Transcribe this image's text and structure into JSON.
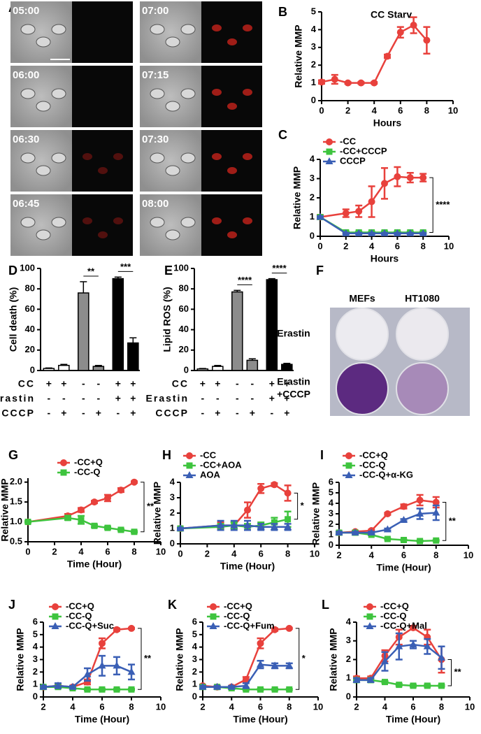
{
  "panel_a": {
    "label": "A",
    "timestamps": [
      "05:00",
      "06:00",
      "06:30",
      "06:45",
      "07:00",
      "07:15",
      "07:30",
      "08:00"
    ]
  },
  "panel_f": {
    "label": "F",
    "columns": [
      "MEFs",
      "HT1080"
    ],
    "rows": [
      {
        "lines": [
          "Erastin"
        ]
      },
      {
        "lines": [
          "Erastin",
          "+CCCP"
        ]
      }
    ]
  },
  "chart_data": [
    {
      "type": "line",
      "label": "B",
      "title": "CC Starv",
      "ylabel": "Relative MMP",
      "xlabel": "Hours",
      "x": [
        0,
        1,
        2,
        3,
        4,
        5,
        6,
        7,
        8
      ],
      "xlim": [
        0,
        10
      ],
      "xticks": [
        0,
        2,
        4,
        6,
        8,
        10
      ],
      "ylim": [
        0,
        5
      ],
      "yticks": [
        0,
        1,
        2,
        3,
        4,
        5
      ],
      "series": [
        {
          "color": "#e8413c",
          "marker": "circle",
          "values": [
            1.05,
            1.2,
            1.0,
            1.0,
            1.0,
            2.5,
            3.85,
            4.25,
            3.4
          ],
          "errors": [
            0.1,
            0.25,
            0.05,
            0.05,
            0.05,
            0.1,
            0.3,
            0.45,
            0.75
          ]
        }
      ]
    },
    {
      "type": "line",
      "label": "C",
      "ylabel": "Relative MMP",
      "xlabel": "Hours",
      "annotation": "****",
      "x": [
        0,
        2,
        3,
        4,
        5,
        6,
        7,
        8
      ],
      "xlim": [
        0,
        10
      ],
      "xticks": [
        0,
        2,
        4,
        6,
        8,
        10
      ],
      "ylim": [
        0,
        4
      ],
      "yticks": [
        0,
        1,
        2,
        3,
        4
      ],
      "series": [
        {
          "name": "-CC",
          "color": "#e8413c",
          "marker": "circle",
          "values": [
            1.0,
            1.2,
            1.3,
            1.8,
            2.75,
            3.1,
            3.05,
            3.05
          ],
          "errors": [
            0.1,
            0.2,
            0.3,
            0.8,
            0.8,
            0.5,
            0.25,
            0.2
          ]
        },
        {
          "name": "-CC+CCCP",
          "color": "#3ec43e",
          "marker": "square",
          "values": [
            1.0,
            0.2,
            0.2,
            0.2,
            0.2,
            0.2,
            0.2,
            0.2
          ],
          "errors": [
            0.05,
            0.05,
            0.05,
            0.05,
            0.05,
            0.05,
            0.05,
            0.05
          ]
        },
        {
          "name": "CCCP",
          "color": "#3a5fb5",
          "marker": "triangle",
          "values": [
            1.0,
            0.15,
            0.15,
            0.15,
            0.15,
            0.15,
            0.15,
            0.15
          ],
          "errors": [
            0.05,
            0.03,
            0.03,
            0.03,
            0.03,
            0.03,
            0.03,
            0.03
          ]
        }
      ]
    },
    {
      "type": "bar",
      "label": "D",
      "ylabel": "Cell death (%)",
      "ylim": [
        0,
        100
      ],
      "yticks": [
        0,
        20,
        40,
        60,
        80,
        100
      ],
      "values": [
        2,
        5,
        76,
        4,
        90,
        27
      ],
      "errors": [
        0.5,
        1,
        11,
        1,
        1.5,
        5
      ],
      "colors": [
        "#ffffff",
        "#ffffff",
        "#8c8c8c",
        "#8c8c8c",
        "#000000",
        "#000000"
      ],
      "annotations": [
        "**",
        "***"
      ],
      "conditions": [
        {
          "name": "CC",
          "values": [
            "+",
            "+",
            "-",
            "-",
            "+",
            "+"
          ]
        },
        {
          "name": "Erastin",
          "values": [
            "-",
            "-",
            "-",
            "-",
            "+",
            "+"
          ]
        },
        {
          "name": "CCCP",
          "values": [
            "-",
            "+",
            "-",
            "+",
            "-",
            "+"
          ]
        }
      ]
    },
    {
      "type": "bar",
      "label": "E",
      "ylabel": "Lipid ROS (%)",
      "ylim": [
        0,
        100
      ],
      "yticks": [
        0,
        20,
        40,
        60,
        80,
        100
      ],
      "values": [
        1.5,
        4,
        77,
        10,
        89,
        6
      ],
      "errors": [
        0.5,
        1,
        1.5,
        1.5,
        1,
        1
      ],
      "colors": [
        "#ffffff",
        "#ffffff",
        "#8c8c8c",
        "#8c8c8c",
        "#000000",
        "#000000"
      ],
      "annotations": [
        "****",
        "****"
      ],
      "conditions": [
        {
          "name": "CC",
          "values": [
            "+",
            "+",
            "-",
            "-",
            "+",
            "+"
          ]
        },
        {
          "name": "Erastin",
          "values": [
            "-",
            "-",
            "-",
            "-",
            "+",
            "+"
          ]
        },
        {
          "name": "CCCP",
          "values": [
            "-",
            "+",
            "-",
            "+",
            "-",
            "+"
          ]
        }
      ]
    },
    {
      "type": "line",
      "label": "G",
      "ylabel": "Relative MMP",
      "xlabel": "Time (Hour)",
      "annotation": "**",
      "x": [
        0,
        3,
        4,
        5,
        6,
        7,
        8
      ],
      "xlim": [
        0,
        10
      ],
      "xticks": [
        0,
        2,
        4,
        6,
        8,
        10
      ],
      "ylim": [
        0.5,
        2.1
      ],
      "yticks": [
        0.5,
        {
          "value": 1,
          "label": "1.0"
        },
        1.5,
        {
          "value": 2,
          "label": "2.0"
        }
      ],
      "series": [
        {
          "name": "-CC+Q",
          "color": "#e8413c",
          "marker": "circle",
          "values": [
            1.0,
            1.15,
            1.3,
            1.5,
            1.6,
            1.8,
            2.0
          ],
          "errors": [
            0.02,
            0.05,
            0.05,
            0.03,
            0.08,
            0.05,
            0.02
          ]
        },
        {
          "name": "-CC-Q",
          "color": "#3ec43e",
          "marker": "square",
          "values": [
            1.0,
            1.1,
            1.05,
            0.9,
            0.85,
            0.8,
            0.75
          ],
          "errors": [
            0.02,
            0.05,
            0.1,
            0.03,
            0.03,
            0.02,
            0.02
          ]
        }
      ]
    },
    {
      "type": "line",
      "label": "H",
      "ylabel": "Relative MMP",
      "xlabel": "Time (Hour)",
      "annotation": "*",
      "x": [
        0,
        3,
        4,
        5,
        6,
        7,
        8
      ],
      "xlim": [
        0,
        10
      ],
      "xticks": [
        0,
        2,
        4,
        6,
        8,
        10
      ],
      "ylim": [
        0,
        4
      ],
      "yticks": [
        0,
        1,
        2,
        3,
        4
      ],
      "series": [
        {
          "name": "-CC",
          "color": "#e8413c",
          "marker": "circle",
          "values": [
            1.0,
            1.2,
            1.2,
            2.2,
            3.6,
            3.85,
            3.3
          ],
          "errors": [
            0.05,
            0.2,
            0.2,
            0.5,
            0.3,
            0.1,
            0.5
          ]
        },
        {
          "name": "-CC+AOA",
          "color": "#3ec43e",
          "marker": "square",
          "values": [
            1.0,
            1.1,
            1.2,
            1.1,
            1.2,
            1.4,
            1.6
          ],
          "errors": [
            0.05,
            0.2,
            0.2,
            0.2,
            0.2,
            0.3,
            0.5
          ]
        },
        {
          "name": "AOA",
          "color": "#3a5fb5",
          "marker": "triangle",
          "values": [
            1.0,
            1.2,
            1.2,
            1.2,
            1.1,
            1.1,
            1.1
          ],
          "errors": [
            0.05,
            0.3,
            0.3,
            0.3,
            0.2,
            0.2,
            0.2
          ]
        }
      ]
    },
    {
      "type": "line",
      "label": "I",
      "ylabel": "Relative MMP",
      "xlabel": "Time (Hour)",
      "annotation": "**",
      "x": [
        2,
        3,
        4,
        5,
        6,
        7,
        8
      ],
      "xlim": [
        2,
        10
      ],
      "xticks": [
        2,
        4,
        6,
        8,
        10
      ],
      "ylim": [
        0,
        6
      ],
      "yticks": [
        0,
        1,
        2,
        3,
        4,
        5,
        6
      ],
      "series": [
        {
          "name": "-CC+Q",
          "color": "#e8413c",
          "marker": "circle",
          "values": [
            1.2,
            1.3,
            1.4,
            3.0,
            3.7,
            4.3,
            4.1
          ],
          "errors": [
            0.1,
            0.1,
            0.1,
            0.1,
            0.2,
            0.5,
            0.5
          ]
        },
        {
          "name": "-CC-Q",
          "color": "#3ec43e",
          "marker": "square",
          "values": [
            1.2,
            1.2,
            1.0,
            0.6,
            0.5,
            0.4,
            0.45
          ],
          "errors": [
            0.05,
            0.05,
            0.05,
            0.05,
            0.05,
            0.05,
            0.05
          ]
        },
        {
          "name": "-CC-Q+α-KG",
          "color": "#3a5fb5",
          "marker": "triangle",
          "values": [
            1.2,
            1.2,
            1.2,
            1.5,
            2.4,
            3.0,
            3.1
          ],
          "errors": [
            0.1,
            0.1,
            0.1,
            0.1,
            0.1,
            0.5,
            0.7
          ]
        }
      ]
    },
    {
      "type": "line",
      "label": "J",
      "ylabel": "Relative MMP",
      "xlabel": "Time (Hour)",
      "annotation": "**",
      "x": [
        2,
        3,
        4,
        5,
        6,
        7,
        8
      ],
      "xlim": [
        2,
        10
      ],
      "xticks": [
        2,
        4,
        6,
        8,
        10
      ],
      "ylim": [
        0,
        6
      ],
      "yticks": [
        0,
        1,
        2,
        3,
        4,
        5,
        6
      ],
      "series": [
        {
          "name": "-CC+Q",
          "color": "#e8413c",
          "marker": "circle",
          "values": [
            0.8,
            0.9,
            0.8,
            1.2,
            4.3,
            5.4,
            5.5
          ],
          "errors": [
            0.05,
            0.1,
            0.1,
            0.2,
            0.4,
            0.1,
            0.05
          ]
        },
        {
          "name": "-CC-Q",
          "color": "#3ec43e",
          "marker": "square",
          "values": [
            0.8,
            0.8,
            0.7,
            0.6,
            0.6,
            0.6,
            0.6
          ],
          "errors": [
            0.05,
            0.05,
            0.05,
            0.05,
            0.05,
            0.05,
            0.05
          ]
        },
        {
          "name": "-CC-Q+Suc",
          "color": "#3a5fb5",
          "marker": "triangle",
          "values": [
            0.8,
            0.9,
            0.8,
            1.8,
            2.5,
            2.5,
            2.0
          ],
          "errors": [
            0.1,
            0.2,
            0.1,
            0.5,
            0.8,
            0.7,
            0.6
          ]
        }
      ]
    },
    {
      "type": "line",
      "label": "K",
      "ylabel": "Relative MMP",
      "xlabel": "Time (Hour)",
      "annotation": "*",
      "x": [
        2,
        3,
        4,
        5,
        6,
        7,
        8
      ],
      "xlim": [
        2,
        10
      ],
      "xticks": [
        2,
        4,
        6,
        8,
        10
      ],
      "ylim": [
        0,
        6
      ],
      "yticks": [
        0,
        1,
        2,
        3,
        4,
        5,
        6
      ],
      "series": [
        {
          "name": "-CC+Q",
          "color": "#e8413c",
          "marker": "circle",
          "values": [
            0.9,
            0.8,
            0.8,
            1.4,
            4.3,
            5.4,
            5.5
          ],
          "errors": [
            0.05,
            0.1,
            0.1,
            0.2,
            0.4,
            0.1,
            0.05
          ]
        },
        {
          "name": "-CC-Q",
          "color": "#3ec43e",
          "marker": "square",
          "values": [
            0.8,
            0.8,
            0.7,
            0.6,
            0.6,
            0.6,
            0.6
          ],
          "errors": [
            0.05,
            0.05,
            0.05,
            0.05,
            0.05,
            0.05,
            0.05
          ]
        },
        {
          "name": "-CC-Q+Fum",
          "color": "#3a5fb5",
          "marker": "triangle",
          "values": [
            0.8,
            0.8,
            0.8,
            0.9,
            2.6,
            2.5,
            2.5
          ],
          "errors": [
            0.1,
            0.1,
            0.1,
            0.2,
            0.3,
            0.2,
            0.2
          ]
        }
      ]
    },
    {
      "type": "line",
      "label": "L",
      "ylabel": "Relative MMP",
      "xlabel": "Time (Hour)",
      "annotation": "**",
      "x": [
        2,
        3,
        4,
        5,
        6,
        7,
        8
      ],
      "xlim": [
        2,
        10
      ],
      "xticks": [
        2,
        4,
        6,
        8,
        10
      ],
      "ylim": [
        0,
        4
      ],
      "yticks": [
        0,
        1,
        2,
        3,
        4
      ],
      "series": [
        {
          "name": "-CC+Q",
          "color": "#e8413c",
          "marker": "circle",
          "values": [
            1.0,
            1.0,
            2.2,
            3.2,
            3.7,
            3.2,
            2.0
          ],
          "errors": [
            0.1,
            0.1,
            0.3,
            0.4,
            0.1,
            0.4,
            0.7
          ]
        },
        {
          "name": "-CC-Q",
          "color": "#3ec43e",
          "marker": "square",
          "values": [
            0.9,
            0.9,
            0.8,
            0.65,
            0.6,
            0.6,
            0.6
          ],
          "errors": [
            0.05,
            0.05,
            0.05,
            0.05,
            0.05,
            0.05,
            0.05
          ]
        },
        {
          "name": "-CC-Q+Mal",
          "color": "#3a5fb5",
          "marker": "triangle",
          "values": [
            0.9,
            0.9,
            1.9,
            2.7,
            2.8,
            2.7,
            2.1
          ],
          "errors": [
            0.1,
            0.1,
            0.5,
            0.7,
            0.2,
            0.4,
            0.6
          ]
        }
      ]
    }
  ]
}
